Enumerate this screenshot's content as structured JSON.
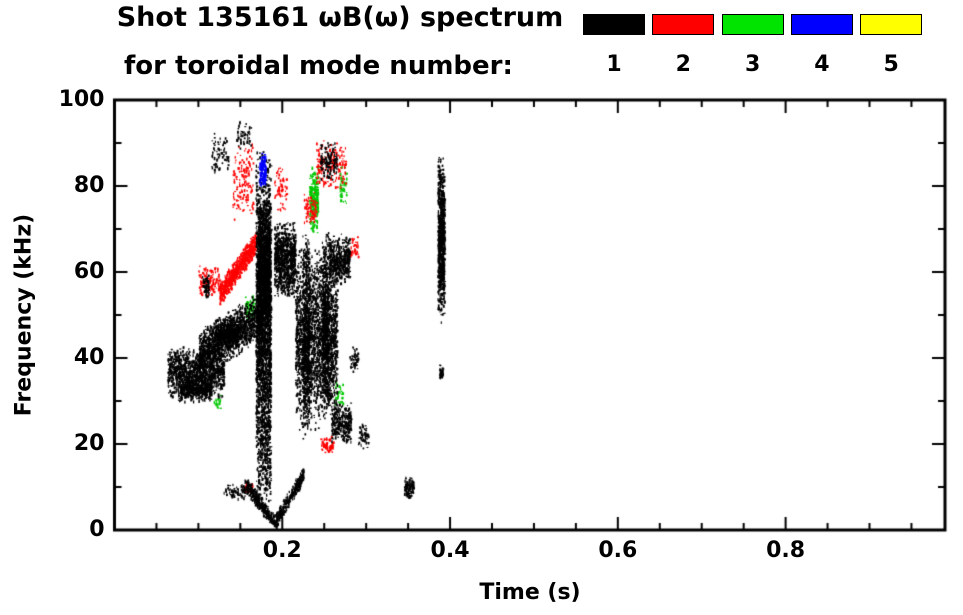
{
  "title": {
    "line1": "Shot 135161 ωB(ω) spectrum",
    "line2": "for toroidal mode number:"
  },
  "legend": {
    "modes": [
      {
        "label": "1",
        "color": "#000000"
      },
      {
        "label": "2",
        "color": "#ff0000"
      },
      {
        "label": "3",
        "color": "#00e400"
      },
      {
        "label": "4",
        "color": "#0000ff"
      },
      {
        "label": "5",
        "color": "#ffff00"
      }
    ]
  },
  "chart_data": {
    "type": "scatter",
    "title": "Shot 135161 ωB(ω) spectrum for toroidal mode number",
    "xlabel": "Time (s)",
    "ylabel": "Frequency (kHz)",
    "xlim": [
      0,
      0.99
    ],
    "ylim": [
      0,
      100
    ],
    "grid": false,
    "legend_position": "top-right",
    "x_ticks": [
      {
        "value": 0.2,
        "label": "0.2"
      },
      {
        "value": 0.4,
        "label": "0.4"
      },
      {
        "value": 0.6,
        "label": "0.6"
      },
      {
        "value": 0.8,
        "label": "0.8"
      }
    ],
    "y_ticks": [
      {
        "value": 0,
        "label": "0"
      },
      {
        "value": 20,
        "label": "20"
      },
      {
        "value": 40,
        "label": "40"
      },
      {
        "value": 60,
        "label": "60"
      },
      {
        "value": 80,
        "label": "80"
      },
      {
        "value": 100,
        "label": "100"
      }
    ],
    "x_minor_step": 0.05,
    "y_minor_step": 10,
    "draw_order": [
      4,
      2,
      1,
      0,
      3
    ],
    "cluster_format": [
      "t_start",
      "t_end",
      "f_start_kHz",
      "f_end_kHz",
      "f_halfspread_kHz",
      "n_points"
    ],
    "series": [
      {
        "name": "1",
        "color": "#000000",
        "clusters": [
          [
            0.063,
            0.13,
            37,
            37,
            6,
            1100
          ],
          [
            0.075,
            0.115,
            33,
            33,
            3,
            450
          ],
          [
            0.1,
            0.175,
            41,
            50,
            6,
            1300
          ],
          [
            0.12,
            0.148,
            46,
            46,
            4,
            350
          ],
          [
            0.168,
            0.186,
            46,
            46,
            44,
            2600
          ],
          [
            0.17,
            0.185,
            62,
            62,
            16,
            1100
          ],
          [
            0.19,
            0.215,
            63,
            63,
            9,
            850
          ],
          [
            0.215,
            0.265,
            45,
            45,
            22,
            2100
          ],
          [
            0.224,
            0.232,
            45,
            45,
            25,
            550
          ],
          [
            0.247,
            0.255,
            48,
            48,
            22,
            550
          ],
          [
            0.255,
            0.28,
            63,
            63,
            6,
            450
          ],
          [
            0.258,
            0.282,
            25,
            25,
            5,
            280
          ],
          [
            0.155,
            0.19,
            11,
            2,
            2,
            320
          ],
          [
            0.19,
            0.225,
            2,
            13,
            2,
            320
          ],
          [
            0.13,
            0.155,
            9,
            9,
            2,
            70
          ],
          [
            0.345,
            0.356,
            10,
            10,
            3,
            110
          ],
          [
            0.385,
            0.393,
            68,
            68,
            20,
            850
          ],
          [
            0.387,
            0.391,
            37,
            37,
            2,
            40
          ],
          [
            0.115,
            0.135,
            88,
            88,
            5,
            70
          ],
          [
            0.145,
            0.162,
            92,
            92,
            4,
            50
          ],
          [
            0.245,
            0.265,
            86,
            86,
            5,
            130
          ],
          [
            0.29,
            0.302,
            22,
            22,
            3,
            50
          ],
          [
            0.28,
            0.29,
            40,
            40,
            3,
            50
          ],
          [
            0.104,
            0.112,
            57,
            57,
            3,
            50
          ]
        ]
      },
      {
        "name": "2",
        "color": "#ff0000",
        "clusters": [
          [
            0.125,
            0.168,
            55,
            67,
            3,
            650
          ],
          [
            0.1,
            0.125,
            58,
            58,
            4,
            130
          ],
          [
            0.14,
            0.165,
            81,
            81,
            9,
            140
          ],
          [
            0.19,
            0.205,
            80,
            80,
            6,
            60
          ],
          [
            0.24,
            0.275,
            85,
            85,
            6,
            180
          ],
          [
            0.245,
            0.26,
            20,
            20,
            2,
            70
          ],
          [
            0.155,
            0.165,
            10,
            10,
            1.5,
            35
          ],
          [
            0.225,
            0.24,
            75,
            75,
            4,
            70
          ],
          [
            0.28,
            0.29,
            66,
            66,
            3,
            35
          ]
        ]
      },
      {
        "name": "3",
        "color": "#00c800",
        "clusters": [
          [
            0.232,
            0.242,
            77,
            77,
            8,
            220
          ],
          [
            0.155,
            0.168,
            52,
            52,
            3,
            70
          ],
          [
            0.262,
            0.272,
            32,
            32,
            3,
            35
          ],
          [
            0.268,
            0.276,
            80,
            80,
            5,
            50
          ],
          [
            0.118,
            0.126,
            30,
            30,
            2,
            18
          ]
        ]
      },
      {
        "name": "4",
        "color": "#0000ff",
        "clusters": [
          [
            0.172,
            0.18,
            84,
            84,
            4,
            140
          ]
        ]
      },
      {
        "name": "5",
        "color": "#ffff00",
        "clusters": []
      }
    ]
  }
}
